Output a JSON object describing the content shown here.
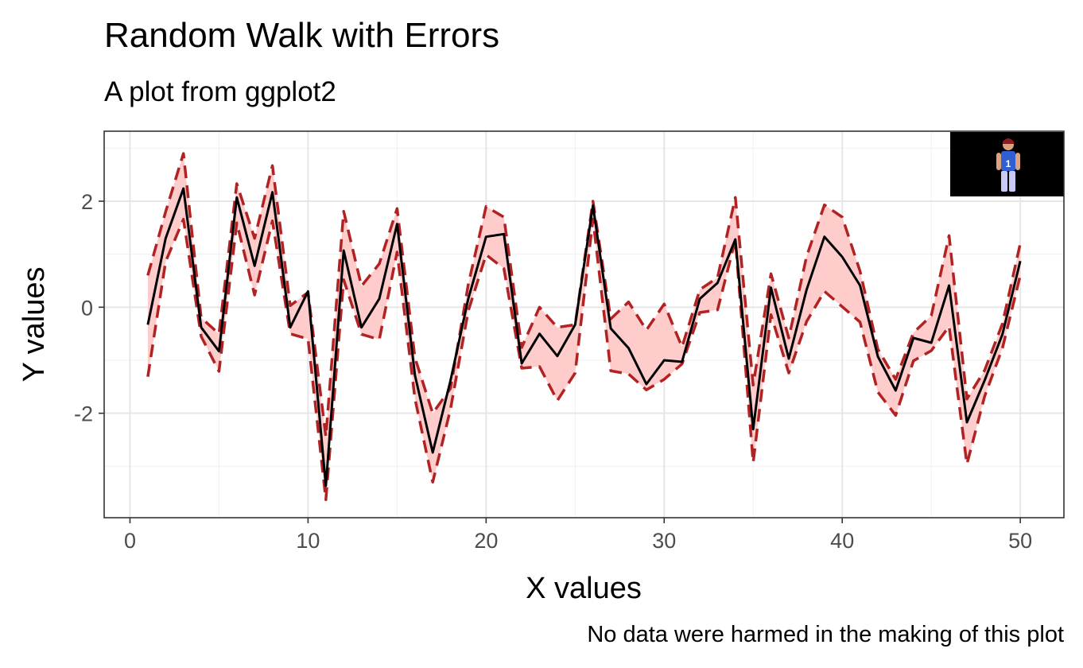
{
  "chart_data": {
    "type": "line",
    "title": "Random Walk with Errors",
    "subtitle": "A plot from ggplot2",
    "caption": "No data were harmed in the making of this plot",
    "xlabel": "X values",
    "ylabel": "Y values",
    "xlim": [
      -1.45,
      52.45
    ],
    "ylim": [
      -3.97,
      3.32
    ],
    "x_ticks": [
      0,
      10,
      20,
      30,
      40,
      50
    ],
    "x_tick_labels": [
      "0",
      "10",
      "20",
      "30",
      "40",
      "50"
    ],
    "y_ticks": [
      -2,
      0,
      2
    ],
    "y_tick_labels": [
      "-2",
      "0",
      "2"
    ],
    "grid": true,
    "line_color": "#000000",
    "band_fill": "#ffcccc",
    "band_line_color": "#b22222",
    "x": [
      1,
      2,
      3,
      4,
      5,
      6,
      7,
      8,
      9,
      10,
      11,
      12,
      13,
      14,
      15,
      16,
      17,
      18,
      19,
      20,
      21,
      22,
      23,
      24,
      25,
      26,
      27,
      28,
      29,
      30,
      31,
      32,
      33,
      34,
      35,
      36,
      37,
      38,
      39,
      40,
      41,
      42,
      43,
      44,
      45,
      46,
      47,
      48,
      49,
      50
    ],
    "series": [
      {
        "name": "y",
        "values": [
          -0.33,
          1.3,
          2.24,
          -0.38,
          -0.83,
          2.07,
          0.78,
          2.17,
          -0.38,
          0.3,
          -3.37,
          1.07,
          -0.38,
          0.16,
          1.57,
          -1.28,
          -2.74,
          -1.38,
          0.16,
          1.33,
          1.38,
          -1.06,
          -0.5,
          -0.92,
          -0.33,
          1.92,
          -0.4,
          -0.77,
          -1.45,
          -1.0,
          -1.03,
          0.16,
          0.46,
          1.28,
          -2.3,
          0.37,
          -0.97,
          0.33,
          1.33,
          0.95,
          0.41,
          -0.93,
          -1.57,
          -0.58,
          -0.67,
          0.41,
          -2.17,
          -1.38,
          -0.51,
          0.87
        ]
      },
      {
        "name": "upper",
        "values": [
          0.6,
          1.8,
          2.9,
          -0.2,
          -0.5,
          2.33,
          1.3,
          2.67,
          0.03,
          0.28,
          -2.44,
          1.81,
          0.4,
          0.82,
          1.86,
          -0.95,
          -2.0,
          -1.53,
          0.43,
          1.9,
          1.7,
          -0.76,
          0.0,
          -0.38,
          -0.33,
          2.0,
          -0.22,
          0.1,
          -0.43,
          0.06,
          -0.75,
          0.33,
          0.56,
          2.07,
          -1.47,
          0.63,
          -0.58,
          0.96,
          1.93,
          1.7,
          0.68,
          -0.79,
          -1.36,
          -0.48,
          -0.16,
          1.35,
          -1.73,
          -1.19,
          -0.31,
          1.2
        ]
      },
      {
        "name": "lower",
        "values": [
          -1.31,
          0.86,
          1.66,
          -0.55,
          -1.21,
          1.59,
          0.23,
          1.63,
          -0.5,
          -0.6,
          -3.63,
          0.52,
          -0.51,
          -0.61,
          1.04,
          -1.72,
          -3.3,
          -1.92,
          -0.07,
          0.99,
          0.73,
          -1.15,
          -1.12,
          -1.76,
          -1.24,
          1.66,
          -1.2,
          -1.26,
          -1.56,
          -1.36,
          -1.07,
          -0.1,
          -0.05,
          1.27,
          -2.93,
          -0.14,
          -1.24,
          -0.27,
          0.3,
          0.01,
          -0.28,
          -1.6,
          -2.04,
          -1.01,
          -0.82,
          -0.36,
          -2.96,
          -1.68,
          -0.77,
          0.6
        ]
      }
    ]
  },
  "inset_image": {
    "description_icon": "football-player-photo",
    "jersey_number": "1"
  }
}
